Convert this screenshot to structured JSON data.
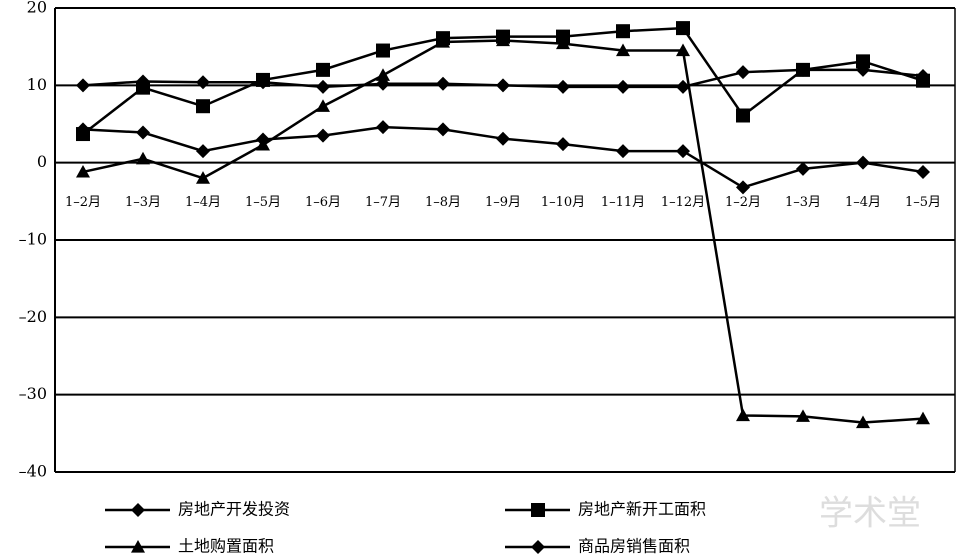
{
  "chart_data": {
    "type": "line",
    "categories": [
      "1–2月",
      "1–3月",
      "1–4月",
      "1–5月",
      "1–6月",
      "1–7月",
      "1–8月",
      "1–9月",
      "1–10月",
      "1–11月",
      "1–12月",
      "1–2月",
      "1–3月",
      "1–4月",
      "1–5月"
    ],
    "series": [
      {
        "name": "房地产开发投资",
        "color": "#000000",
        "marker": "diamond",
        "values": [
          10,
          10.5,
          10.4,
          10.4,
          9.8,
          10.2,
          10.2,
          10,
          9.8,
          9.8,
          9.8,
          11.7,
          12,
          12,
          11.2
        ]
      },
      {
        "name": "房地产新开工面积",
        "color": "#000000",
        "marker": "square",
        "values": [
          3.7,
          9.7,
          7.3,
          10.7,
          12,
          14.5,
          16.1,
          16.3,
          16.3,
          17,
          17.4,
          6.1,
          12,
          13.1,
          10.6
        ]
      },
      {
        "name": "土地购置面积",
        "color": "#000000",
        "marker": "triangle",
        "values": [
          -1.2,
          0.5,
          -2,
          2.3,
          7.3,
          11.3,
          15.6,
          15.8,
          15.4,
          14.5,
          14.5,
          -32.7,
          -32.8,
          -33.6,
          -33.1
        ]
      },
      {
        "name": "商品房销售面积",
        "color": "#000000",
        "marker": "diamond",
        "values": [
          4.3,
          3.9,
          1.5,
          3,
          3.5,
          4.6,
          4.3,
          3.1,
          2.4,
          1.5,
          1.5,
          -3.2,
          -0.8,
          0,
          -1.2
        ]
      }
    ],
    "ylim": [
      -40,
      20
    ],
    "yticks": [
      {
        "value": -40,
        "label": "–40"
      },
      {
        "value": -30,
        "label": "–30"
      },
      {
        "value": -20,
        "label": "–20"
      },
      {
        "value": -10,
        "label": "–10"
      },
      0,
      10,
      20
    ],
    "grid": true,
    "watermark": "学术堂"
  }
}
